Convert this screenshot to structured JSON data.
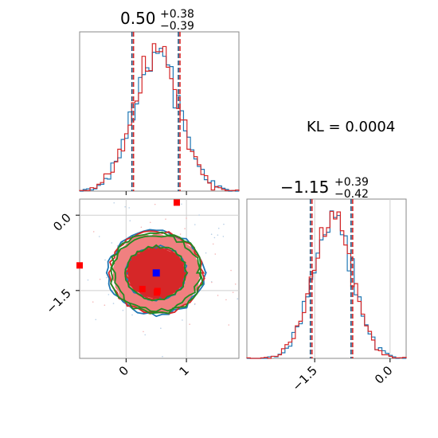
{
  "chart_data": {
    "type": "corner",
    "kl_text": "KL = 0.0004",
    "params": [
      {
        "title_main": "0.50",
        "title_sup": "+0.38",
        "title_sub": "−0.39",
        "median": 0.5,
        "lo": 0.11,
        "hi": 0.88
      },
      {
        "title_main": "−1.15",
        "title_sup": "+0.39",
        "title_sub": "−0.42",
        "median": -1.15,
        "lo": -1.57,
        "hi": -0.76
      }
    ],
    "x0_ticks": [
      {
        "v": 0,
        "label": "0"
      },
      {
        "v": 1,
        "label": "1"
      }
    ],
    "x1_ticks": [
      {
        "v": -1.5,
        "label": "−1.5"
      },
      {
        "v": 0.0,
        "label": "0.0"
      }
    ],
    "y1_ticks": [
      {
        "v": 0.0,
        "label": "0.0"
      },
      {
        "v": -1.5,
        "label": "−1.5"
      }
    ],
    "x0_range": [
      -0.77,
      1.87
    ],
    "x1_range": [
      -2.85,
      0.32
    ],
    "grid": true,
    "truth": {
      "x": 0.5,
      "y": -1.15,
      "color": "#0000ff"
    },
    "series": [
      {
        "color": "#1f77b4",
        "seed": 3
      },
      {
        "color": "#d62728",
        "seed": 7
      }
    ],
    "contour_colors": {
      "blue": "#1f77b4",
      "red": "#d62728",
      "green": "#228b22",
      "fill_inner": "#d62728",
      "fill_outer": "#f08080"
    },
    "outliers": [
      {
        "x": 0.84,
        "y": 0.25
      },
      {
        "x": -0.77,
        "y": -1.0
      },
      {
        "x": 0.27,
        "y": -1.47
      },
      {
        "x": 0.52,
        "y": -1.51
      },
      {
        "x": 0.51,
        "y": -1.54
      }
    ]
  }
}
